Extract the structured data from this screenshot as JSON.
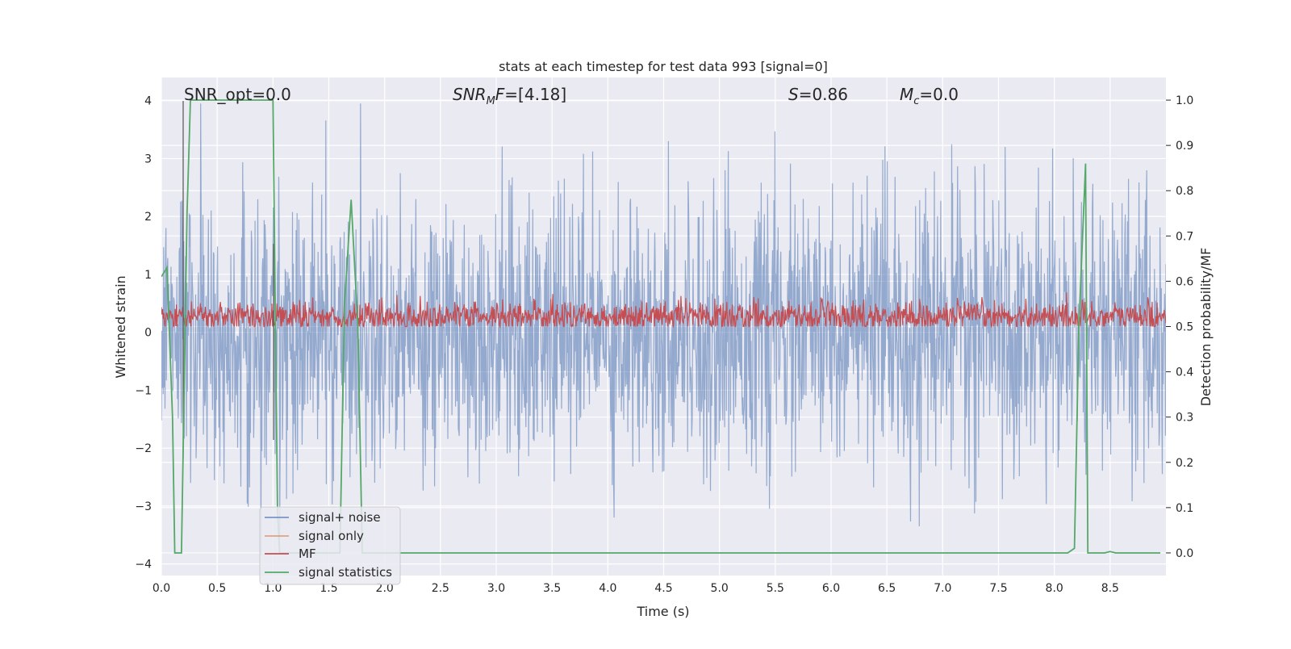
{
  "chart_data": {
    "type": "line",
    "title": "stats at each timestep for test data 993 [signal=0]",
    "xlabel": "Time (s)",
    "ylabel": "Whitened strain",
    "ylabel_right": "Detection probability/MF",
    "xlim": [
      0.0,
      9.0
    ],
    "ylim": [
      -4.2,
      4.4
    ],
    "ylim_right": [
      -0.05,
      1.05
    ],
    "x_ticks": [
      "0.0",
      "0.5",
      "1.0",
      "1.5",
      "2.0",
      "2.5",
      "3.0",
      "3.5",
      "4.0",
      "4.5",
      "5.0",
      "5.5",
      "6.0",
      "6.5",
      "7.0",
      "7.5",
      "8.0",
      "8.5"
    ],
    "y_ticks": [
      "4",
      "3",
      "2",
      "1",
      "0",
      "−1",
      "−2",
      "−3",
      "−4"
    ],
    "y_ticks_right": [
      "1.0",
      "0.9",
      "0.8",
      "0.7",
      "0.6",
      "0.5",
      "0.4",
      "0.3",
      "0.2",
      "0.1",
      "0.0"
    ],
    "grid": true,
    "legend_position": "lower-left",
    "annotations": {
      "snr_opt": "SNR_opt=0.0",
      "snr_mf": "=[4.18]",
      "s_stat": "=0.86",
      "mc": "=0.0"
    },
    "series": [
      {
        "name": "signal+ noise",
        "color": "#4c72b0",
        "axis": "left",
        "description_of_values": "white noise, amplitude roughly -3.8 to 4.0"
      },
      {
        "name": "signal only",
        "color": "#dd8452",
        "axis": "left",
        "values": "zero everywhere"
      },
      {
        "name": "MF",
        "color": "#c44e52",
        "axis": "right",
        "description_of_values": "noisy band between 0.5 and 0.58"
      },
      {
        "name": "signal statistics",
        "color": "#55a868",
        "axis": "right",
        "x": [
          0.0,
          0.05,
          0.1,
          0.12,
          0.18,
          0.23,
          0.26,
          0.28,
          1.0,
          1.02,
          1.04,
          1.06,
          1.1,
          1.6,
          1.64,
          1.7,
          1.76,
          1.8,
          8.12,
          8.18,
          8.22,
          8.28,
          8.3,
          8.4,
          8.45,
          8.5,
          8.55,
          8.95
        ],
        "y": [
          0.61,
          0.63,
          0.3,
          0.0,
          0.0,
          0.75,
          1.0,
          1.0,
          1.0,
          0.55,
          0.1,
          0.0,
          0.0,
          0.0,
          0.55,
          0.78,
          0.5,
          0.0,
          0.0,
          0.01,
          0.5,
          0.86,
          0.0,
          0.0,
          0.0,
          0.003,
          0.0,
          0.0
        ]
      }
    ]
  }
}
